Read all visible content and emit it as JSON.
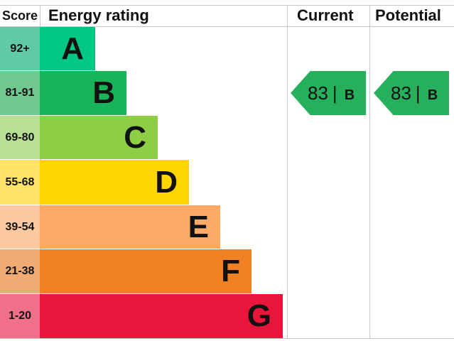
{
  "chart_data": {
    "type": "bar",
    "title": "",
    "columns": {
      "score": "Score",
      "rating": "Energy rating",
      "current": "Current",
      "potential": "Potential"
    },
    "bands": [
      {
        "letter": "A",
        "range": "92+",
        "color": "#00c781",
        "tint": "#5fcaa3"
      },
      {
        "letter": "B",
        "range": "81-91",
        "color": "#19b459",
        "tint": "#6fc990"
      },
      {
        "letter": "C",
        "range": "69-80",
        "color": "#8dce46",
        "tint": "#b8e095"
      },
      {
        "letter": "D",
        "range": "55-68",
        "color": "#ffd500",
        "tint": "#fde36a"
      },
      {
        "letter": "E",
        "range": "39-54",
        "color": "#fcaa65",
        "tint": "#fcc9a2"
      },
      {
        "letter": "F",
        "range": "21-38",
        "color": "#ef8023",
        "tint": "#f2aa73"
      },
      {
        "letter": "G",
        "range": "1-20",
        "color": "#e9153b",
        "tint": "#ef7088"
      }
    ],
    "current": {
      "value": "83",
      "letter": "B",
      "color": "#27b05b"
    },
    "potential": {
      "value": "83",
      "letter": "B",
      "color": "#27b05b"
    }
  }
}
